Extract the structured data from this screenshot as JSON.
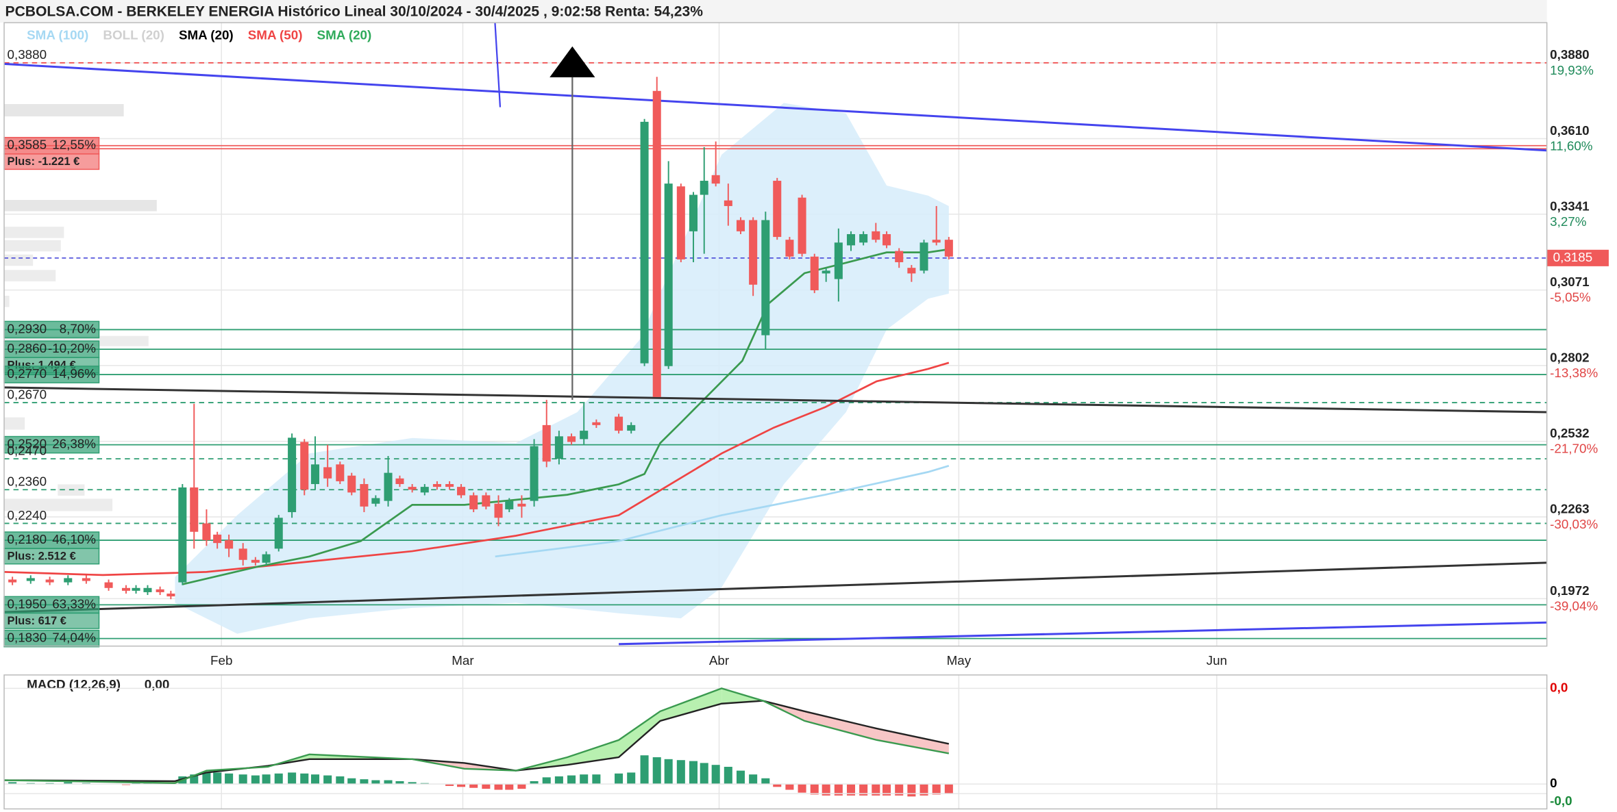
{
  "chart_data": {
    "type": "candlestick",
    "title": "PCBOLSA.COM - BERKELEY ENERGIA Histórico Lineal 30/10/2024 - 30/4/2025 , 9:02:58 Renta: 54,23%",
    "legend": [
      {
        "name": "SMA (100)",
        "color": "#a5d8f3"
      },
      {
        "name": "BOLL (20)",
        "color": "#d0d0d0"
      },
      {
        "name": "SMA (20)",
        "color": "#000000"
      },
      {
        "name": "SMA (50)",
        "color": "#ef4444"
      },
      {
        "name": "SMA (20)",
        "color": "#2eaa5a"
      }
    ],
    "xlim": [
      0,
      186
    ],
    "xticks": [
      {
        "value": 26.2,
        "label": "Feb"
      },
      {
        "value": 55.3,
        "label": "Mar"
      },
      {
        "value": 86.2,
        "label": "Abr"
      },
      {
        "value": 115.1,
        "label": "May"
      },
      {
        "value": 146.2,
        "label": "Jun"
      }
    ],
    "ylim": [
      0.1803,
      0.4023
    ],
    "yticks": [
      {
        "value": 0.388,
        "label": "0,3880"
      },
      {
        "value": 0.361,
        "label": "0,3610"
      },
      {
        "value": 0.3341,
        "label": "0,3341"
      },
      {
        "value": 0.3071,
        "label": "0,3071"
      },
      {
        "value": 0.2802,
        "label": "0,2802"
      },
      {
        "value": 0.2532,
        "label": "0,2532"
      },
      {
        "value": 0.2263,
        "label": "0,2263"
      },
      {
        "value": 0.1972,
        "label": "0,1972"
      }
    ],
    "ytick_changes": [
      "19,93%",
      "11,60%",
      "3,27%",
      "-5,05%",
      "-13,38%",
      "-21,70%",
      "-30,03%",
      "-39,04%"
    ],
    "last": {
      "value": 0.3185,
      "label": "0,3185",
      "color": "#f05a5a"
    },
    "grid": true,
    "up_color": "#2e9e72",
    "down_color": "#f05a5a",
    "candles": {
      "x": [
        1.0,
        3.2,
        5.5,
        7.7,
        9.9,
        12.6,
        14.7,
        15.9,
        17.3,
        18.8,
        20.1,
        21.5,
        22.9,
        24.4,
        25.7,
        27.1,
        28.8,
        30.3,
        31.6,
        33.1,
        34.7,
        36.2,
        37.5,
        39.0,
        40.5,
        41.9,
        43.4,
        44.8,
        46.3,
        47.7,
        49.2,
        50.7,
        52.2,
        53.7,
        55.1,
        56.6,
        58.1,
        59.6,
        60.9,
        62.4,
        63.9,
        65.4,
        66.9,
        68.4,
        69.9,
        71.4,
        74.1,
        75.6,
        77.2,
        78.7,
        80.1,
        81.6,
        83.1,
        84.4,
        85.8,
        87.3,
        88.8,
        90.3,
        91.8,
        93.2,
        94.7,
        96.2,
        97.7,
        99.1,
        100.6,
        102.1,
        103.6,
        105.1,
        106.4,
        107.9,
        109.4,
        110.9,
        112.4,
        113.9
      ],
      "open": [
        0.204,
        0.2035,
        0.204,
        0.203,
        0.2045,
        0.203,
        0.201,
        0.2,
        0.1995,
        0.2005,
        0.199,
        0.203,
        0.2368,
        0.224,
        0.22,
        0.218,
        0.215,
        0.211,
        0.21,
        0.215,
        0.228,
        0.253,
        0.238,
        0.244,
        0.245,
        0.241,
        0.238,
        0.231,
        0.232,
        0.24,
        0.237,
        0.235,
        0.238,
        0.238,
        0.237,
        0.234,
        0.234,
        0.231,
        0.229,
        0.231,
        0.232,
        0.259,
        0.247,
        0.255,
        0.254,
        0.26,
        0.262,
        0.257,
        0.281,
        0.378,
        0.28,
        0.344,
        0.328,
        0.341,
        0.348,
        0.339,
        0.332,
        0.332,
        0.291,
        0.346,
        0.325,
        0.34,
        0.319,
        0.313,
        0.311,
        0.323,
        0.324,
        0.328,
        0.327,
        0.321,
        0.315,
        0.314,
        0.325,
        0.325
      ],
      "high": [
        0.205,
        0.2055,
        0.205,
        0.2055,
        0.2055,
        0.204,
        0.202,
        0.202,
        0.202,
        0.2015,
        0.2,
        0.238,
        0.2666,
        0.229,
        0.221,
        0.22,
        0.217,
        0.212,
        0.214,
        0.227,
        0.256,
        0.254,
        0.255,
        0.252,
        0.246,
        0.242,
        0.24,
        0.234,
        0.248,
        0.241,
        0.238,
        0.238,
        0.239,
        0.239,
        0.238,
        0.235,
        0.235,
        0.234,
        0.233,
        0.234,
        0.254,
        0.268,
        0.257,
        0.256,
        0.267,
        0.261,
        0.263,
        0.26,
        0.368,
        0.383,
        0.353,
        0.345,
        0.342,
        0.358,
        0.36,
        0.345,
        0.333,
        0.333,
        0.335,
        0.347,
        0.326,
        0.341,
        0.32,
        0.315,
        0.329,
        0.328,
        0.328,
        0.331,
        0.328,
        0.322,
        0.316,
        0.325,
        0.337,
        0.326
      ],
      "low": [
        0.202,
        0.2025,
        0.202,
        0.202,
        0.2025,
        0.2,
        0.199,
        0.199,
        0.1985,
        0.1985,
        0.197,
        0.202,
        0.215,
        0.216,
        0.215,
        0.212,
        0.209,
        0.209,
        0.209,
        0.214,
        0.226,
        0.234,
        0.236,
        0.237,
        0.238,
        0.234,
        0.228,
        0.23,
        0.23,
        0.237,
        0.235,
        0.234,
        0.236,
        0.236,
        0.233,
        0.228,
        0.229,
        0.223,
        0.228,
        0.226,
        0.23,
        0.244,
        0.245,
        0.252,
        0.252,
        0.258,
        0.256,
        0.256,
        0.28,
        0.269,
        0.279,
        0.317,
        0.317,
        0.32,
        0.344,
        0.33,
        0.327,
        0.305,
        0.286,
        0.325,
        0.318,
        0.319,
        0.306,
        0.31,
        0.303,
        0.321,
        0.323,
        0.324,
        0.322,
        0.315,
        0.31,
        0.313,
        0.323,
        0.318
      ],
      "close": [
        0.203,
        0.2045,
        0.203,
        0.2045,
        0.2035,
        0.201,
        0.2,
        0.201,
        0.201,
        0.1995,
        0.198,
        0.2368,
        0.221,
        0.218,
        0.217,
        0.215,
        0.211,
        0.21,
        0.213,
        0.226,
        0.2545,
        0.236,
        0.245,
        0.24,
        0.239,
        0.235,
        0.23,
        0.233,
        0.242,
        0.238,
        0.236,
        0.237,
        0.237,
        0.237,
        0.234,
        0.229,
        0.23,
        0.226,
        0.232,
        0.23,
        0.2515,
        0.246,
        0.255,
        0.253,
        0.257,
        0.259,
        0.257,
        0.259,
        0.367,
        0.269,
        0.345,
        0.318,
        0.341,
        0.346,
        0.345,
        0.337,
        0.328,
        0.309,
        0.332,
        0.326,
        0.319,
        0.32,
        0.307,
        0.314,
        0.324,
        0.327,
        0.327,
        0.325,
        0.323,
        0.317,
        0.313,
        0.324,
        0.324,
        0.319
      ]
    },
    "band": {
      "color": "#d6ecfa",
      "upper": {
        "x": [
          20.6,
          28.1,
          36.8,
          49.2,
          61.7,
          69.1,
          76.6,
          86.5,
          94.0,
          101.5,
          106.4,
          111.4,
          113.9
        ],
        "values": [
          0.2049,
          0.2269,
          0.2489,
          0.2544,
          0.2526,
          0.2636,
          0.2893,
          0.3553,
          0.3737,
          0.37,
          0.3443,
          0.3407,
          0.337
        ]
      },
      "lower": {
        "x": [
          20.6,
          28.1,
          36.8,
          49.2,
          61.7,
          74.1,
          81.6,
          86.5,
          94.0,
          101.5,
          106.4,
          111.4,
          113.9
        ],
        "values": [
          0.1957,
          0.1847,
          0.1902,
          0.1939,
          0.1957,
          0.192,
          0.1902,
          0.2012,
          0.2379,
          0.2636,
          0.293,
          0.304,
          0.3058
        ]
      }
    },
    "series": [
      {
        "color": "#a5d8f3",
        "x": [
          59.2,
          74.1,
          86.5,
          99.0,
          111.4,
          113.9
        ],
        "values": [
          0.2122,
          0.2177,
          0.2269,
          0.2342,
          0.2423,
          0.2445
        ]
      },
      {
        "color": "#ef4444",
        "x": [
          0,
          11.9,
          24.4,
          36.8,
          49.2,
          61.7,
          74.1,
          80.3,
          86.5,
          92.8,
          99.0,
          105.2,
          111.4,
          113.9
        ],
        "values": [
          0.2067,
          0.2056,
          0.2067,
          0.2104,
          0.2141,
          0.2196,
          0.2269,
          0.2379,
          0.2489,
          0.2581,
          0.2654,
          0.2746,
          0.279,
          0.2812
        ]
      },
      {
        "color": "#3a9a4f",
        "x": [
          21.5,
          30.6,
          36.8,
          43.0,
          49.2,
          55.5,
          61.7,
          67.9,
          74.1,
          77.2,
          79.1,
          81.6,
          85.3,
          89.0,
          92.1,
          96.5,
          101.5,
          106.4,
          111.4,
          113.9
        ],
        "values": [
          0.2023,
          0.2086,
          0.2122,
          0.2177,
          0.2306,
          0.2306,
          0.2324,
          0.2342,
          0.2379,
          0.2416,
          0.2526,
          0.2599,
          0.2709,
          0.2819,
          0.3021,
          0.3131,
          0.3168,
          0.3205,
          0.3205,
          0.3216
        ]
      }
    ],
    "trendlines": [
      {
        "color": "#4444ee",
        "x": [
          0,
          186
        ],
        "values": [
          0.3876,
          0.3568
        ]
      },
      {
        "color": "#4444ee",
        "x": [
          74.1,
          186
        ],
        "values": [
          0.181,
          0.1887
        ]
      },
      {
        "color": "#333333",
        "x": [
          0,
          186
        ],
        "values": [
          0.2724,
          0.2636
        ]
      },
      {
        "color": "#333333",
        "x": [
          0,
          186
        ],
        "values": [
          0.1924,
          0.21
        ]
      }
    ],
    "levels": [
      {
        "value": 0.388,
        "label": "0,3880",
        "dashed": true,
        "color": "#ef4444"
      },
      {
        "value": 0.3585,
        "label": "0,3585",
        "change": "12,55%",
        "plus": "Plus: -1.221 €",
        "color": "#f05a5a"
      },
      {
        "value": 0.293,
        "label": "0,2930",
        "change": "8,70%",
        "color": "#2e9e72"
      },
      {
        "value": 0.286,
        "label": "0,2860",
        "change": "-10,20%",
        "plus": "Plus: 1.494 €",
        "color": "#2e9e72"
      },
      {
        "value": 0.277,
        "label": "0,2770",
        "change": "14,96%",
        "color": "#2e9e72"
      },
      {
        "value": 0.267,
        "label": "0,2670",
        "dashed": true,
        "color": "#2e9e72"
      },
      {
        "value": 0.252,
        "label": "0,2520",
        "change": "26,38%",
        "color": "#2e9e72"
      },
      {
        "value": 0.247,
        "label": "0,2470",
        "dashed": true,
        "color": "#2e9e72"
      },
      {
        "value": 0.236,
        "label": "0,2360",
        "dashed": true,
        "color": "#2e9e72"
      },
      {
        "value": 0.224,
        "label": "0,2240",
        "dashed": true,
        "color": "#2e9e72"
      },
      {
        "value": 0.218,
        "label": "0,2180",
        "change": "46,10%",
        "plus": "Plus: 2.512 €",
        "color": "#2e9e72"
      },
      {
        "value": 0.195,
        "label": "0,1950",
        "change": "63,33%",
        "plus": "Plus: 617 €",
        "color": "#2e9e72"
      },
      {
        "value": 0.183,
        "label": "0,1830",
        "change": "74,04%",
        "color": "#2e9e72"
      }
    ],
    "macd": {
      "title": "MACD (12,26,9)",
      "value_text": "0,00",
      "ylim": [
        -0.0026,
        0.0114
      ],
      "yticks": [
        {
          "value": 0.01,
          "label": "0,0",
          "color": "#e00000"
        },
        {
          "value": 0,
          "label": "0",
          "color": "#000000"
        },
        {
          "value": -0.001,
          "label": "-0,0",
          "color": "#1a8a3a"
        }
      ],
      "hist": [
        0.0002,
        0.0001,
        0.0001,
        0.0002,
        0.0001,
        0,
        -0.0001,
        0.0001,
        0.0001,
        0,
        0,
        0.0008,
        0.001,
        0.0012,
        0.0012,
        0.0011,
        0.001,
        0.0009,
        0.001,
        0.0011,
        0.0012,
        0.0011,
        0.001,
        0.0009,
        0.0008,
        0.0006,
        0.0005,
        0.0004,
        0.0004,
        0.0003,
        0.0002,
        0.0001,
        0,
        -0.0002,
        -0.0003,
        -0.0004,
        -0.0005,
        -0.0006,
        -0.0006,
        -0.0005,
        0.0003,
        0.0007,
        0.0008,
        0.0009,
        0.001,
        0.001,
        0.0011,
        0.0012,
        0.003,
        0.0028,
        0.0026,
        0.0025,
        0.0024,
        0.0022,
        0.002,
        0.0018,
        0.0014,
        0.001,
        0.0006,
        -0.0003,
        -0.0006,
        -0.0009,
        -0.0011,
        -0.0012,
        -0.0012,
        -0.0012,
        -0.0012,
        -0.0012,
        -0.0012,
        -0.0012,
        -0.0013,
        -0.0012,
        -0.0011,
        -0.001
      ],
      "x": [
        0,
        20.6,
        24.4,
        31.8,
        36.8,
        49.2,
        55.5,
        61.7,
        67.9,
        74.1,
        79.1,
        86.5,
        91.5,
        96.5,
        105.2,
        113.9
      ],
      "series": [
        {
          "color": "#222222",
          "values": [
            0.0004,
            0.0003,
            0.0012,
            0.0019,
            0.0026,
            0.0026,
            0.0022,
            0.0014,
            0.002,
            0.0028,
            0.0066,
            0.0084,
            0.0087,
            0.0076,
            0.0058,
            0.0042
          ]
        },
        {
          "color": "#3a9a4f",
          "values": [
            0.0004,
            0.0001,
            0.0014,
            0.0018,
            0.0031,
            0.0026,
            0.0016,
            0.0014,
            0.0028,
            0.0046,
            0.0076,
            0.01,
            0.0087,
            0.0066,
            0.0046,
            0.0032
          ]
        }
      ]
    }
  }
}
